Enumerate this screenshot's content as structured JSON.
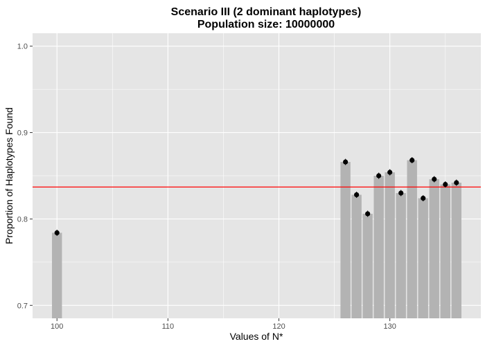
{
  "chart_data": {
    "type": "bar",
    "title": "Scenario III (2 dominant haplotypes)",
    "subtitle": "Population size: 10000000",
    "xlabel": "Values of N*",
    "ylabel": "Proportion of Haplotypes Found",
    "x_ticks": [
      100,
      110,
      120,
      130
    ],
    "y_ticks": [
      0.7,
      0.8,
      0.9,
      1.0
    ],
    "y_tick_labels": [
      "0.7",
      "0.8",
      "0.9",
      "1.0"
    ],
    "xlim": [
      97.8,
      138.2
    ],
    "ylim": [
      0.685,
      1.015
    ],
    "reference_line": {
      "value": 0.837,
      "color": "#ff0000"
    },
    "bars": [
      {
        "x": 100,
        "value": 0.784
      },
      {
        "x": 126,
        "value": 0.866
      },
      {
        "x": 127,
        "value": 0.828
      },
      {
        "x": 128,
        "value": 0.806
      },
      {
        "x": 129,
        "value": 0.85
      },
      {
        "x": 130,
        "value": 0.854
      },
      {
        "x": 131,
        "value": 0.83
      },
      {
        "x": 132,
        "value": 0.868
      },
      {
        "x": 133,
        "value": 0.824
      },
      {
        "x": 134,
        "value": 0.846
      },
      {
        "x": 135,
        "value": 0.84
      },
      {
        "x": 136,
        "value": 0.842
      }
    ],
    "colors": {
      "panel": "#e5e5e5",
      "grid": "#ffffff",
      "bar": "#b3b3b3",
      "point": "#000000"
    },
    "grid": true,
    "legend": "none"
  }
}
